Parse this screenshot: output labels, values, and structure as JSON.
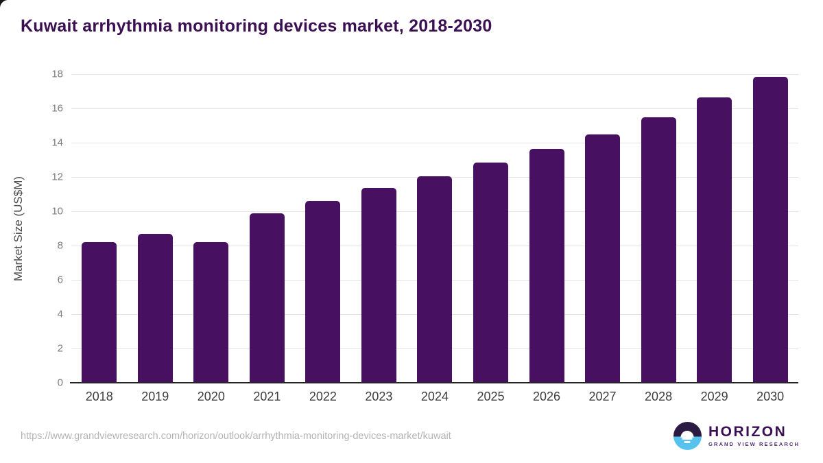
{
  "title": "Kuwait arrhythmia monitoring devices market, 2018-2030",
  "chart_data": {
    "type": "bar",
    "title": "Kuwait arrhythmia monitoring devices market, 2018-2030",
    "categories": [
      "2018",
      "2019",
      "2020",
      "2021",
      "2022",
      "2023",
      "2024",
      "2025",
      "2026",
      "2027",
      "2028",
      "2029",
      "2030"
    ],
    "values": [
      8.2,
      8.7,
      8.2,
      9.9,
      10.6,
      11.35,
      12.05,
      12.85,
      13.65,
      14.5,
      15.5,
      16.65,
      17.85
    ],
    "xlabel": "",
    "ylabel": "Market Size (US$M)",
    "ylim": [
      0,
      18
    ],
    "ytick_step": 2,
    "grid": true,
    "legend": false,
    "bar_color": "#471061"
  },
  "colors": {
    "bar": "#471061",
    "title_text": "#3b1053",
    "axis_line": "#262626",
    "gridline": "#e4e4e4",
    "y_tick_label": "#7d7d7d",
    "x_tick_label": "#3d3d3d",
    "url_text": "#b3b3b3",
    "logo_dark_half": "#2b1b43",
    "logo_blue_half": "#56c3ee"
  },
  "footer": {
    "source_url": "https://www.grandviewresearch.com/horizon/outlook/arrhythmia-monitoring-devices-market/kuwait",
    "logo": {
      "name": "HORIZON",
      "subtitle": "GRAND VIEW RESEARCH"
    }
  }
}
